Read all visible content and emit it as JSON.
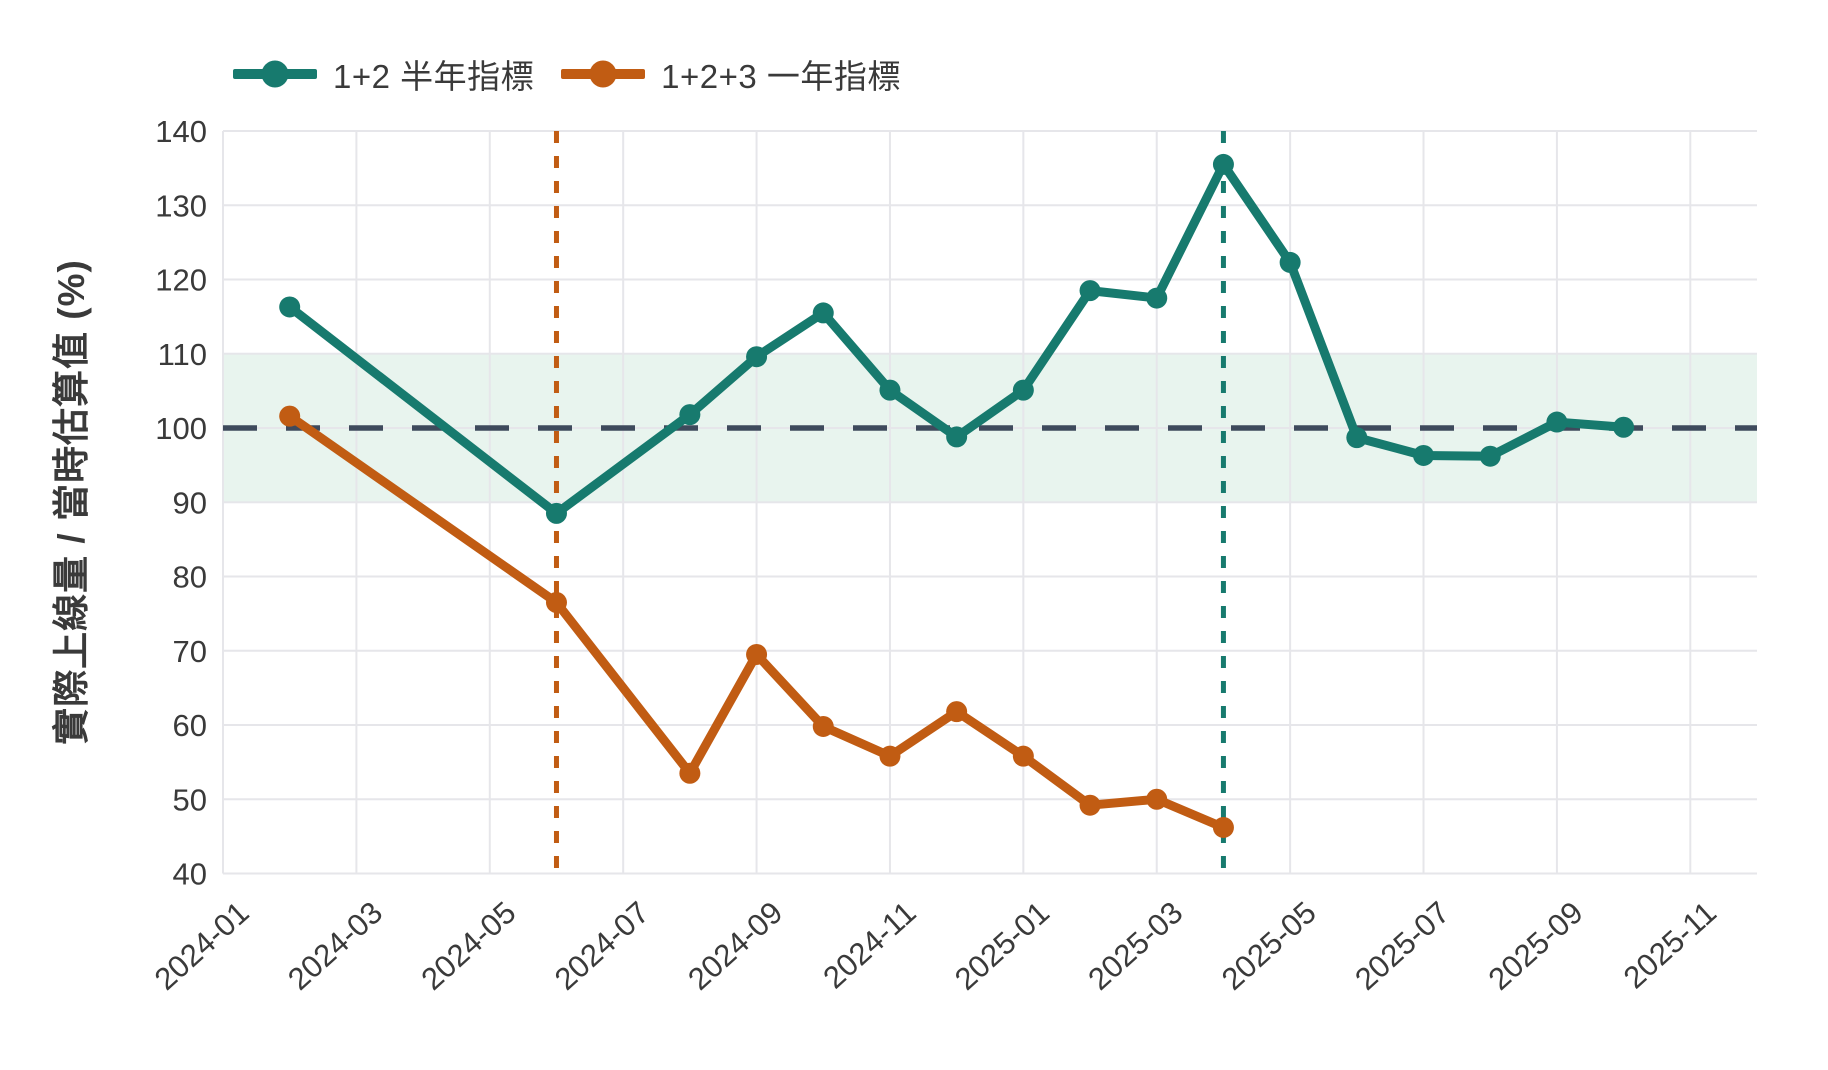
{
  "y_axis": {
    "label": "實際上線量 / 當時估算值 (%)"
  },
  "chart_data": {
    "type": "line",
    "title": "",
    "xlabel": "",
    "ylabel": "實際上線量 / 當時估算值 (%)",
    "ylim": [
      40,
      140
    ],
    "y_ticks": [
      40,
      50,
      60,
      70,
      80,
      90,
      100,
      110,
      120,
      130,
      140
    ],
    "x_range": [
      "2024-01",
      "2025-12"
    ],
    "x_ticks": [
      "2024-01",
      "2024-03",
      "2024-05",
      "2024-07",
      "2024-09",
      "2024-11",
      "2025-01",
      "2025-03",
      "2025-05",
      "2025-07",
      "2025-09",
      "2025-11"
    ],
    "grid": true,
    "legend_position": "top-left",
    "colors": {
      "background": "#ffffff",
      "grid": "#e6e6ea",
      "tick_text": "#3a3a3a",
      "reference_line": "#3e4a5c",
      "band_fill": "#e8f4ee"
    },
    "band": {
      "y0": 90,
      "y1": 110,
      "color": "#e8f4ee"
    },
    "reference_line": {
      "y": 100,
      "style": "dashed",
      "color": "#3e4a5c"
    },
    "vlines": [
      {
        "x": "2024-06",
        "style": "dotted",
        "color": "#c15c13"
      },
      {
        "x": "2025-04",
        "style": "dotted",
        "color": "#177a6e"
      }
    ],
    "series": [
      {
        "name": "1+2 半年指標",
        "color": "#177a6e",
        "x": [
          "2024-02",
          "2024-06",
          "2024-08",
          "2024-09",
          "2024-10",
          "2024-11",
          "2024-12",
          "2025-01",
          "2025-02",
          "2025-03",
          "2025-04",
          "2025-05",
          "2025-06",
          "2025-07",
          "2025-08",
          "2025-09",
          "2025-10"
        ],
        "y": [
          116.3,
          88.5,
          101.8,
          109.6,
          115.5,
          105.1,
          98.8,
          105.1,
          118.5,
          117.5,
          135.5,
          122.3,
          98.7,
          96.3,
          96.2,
          100.8,
          100.1
        ]
      },
      {
        "name": "1+2+3 一年指標",
        "color": "#c15c13",
        "x": [
          "2024-02",
          "2024-06",
          "2024-08",
          "2024-09",
          "2024-10",
          "2024-11",
          "2024-12",
          "2025-01",
          "2025-02",
          "2025-03",
          "2025-04"
        ],
        "y": [
          101.6,
          76.5,
          53.5,
          69.5,
          59.8,
          55.8,
          61.8,
          55.8,
          49.2,
          50.0,
          46.2
        ]
      }
    ]
  }
}
